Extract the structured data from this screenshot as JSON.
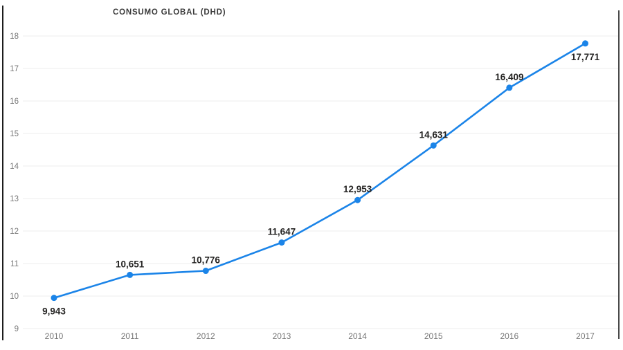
{
  "page": {
    "background": "#ffffff"
  },
  "chart_data": {
    "type": "line",
    "title": "CONSUMO GLOBAL (DHD)",
    "x_labels": [
      "2010",
      "2011",
      "2012",
      "2013",
      "2014",
      "2015",
      "2016",
      "2017"
    ],
    "series": [
      {
        "name": "Consumo global",
        "values": [
          9.943,
          10.651,
          10.776,
          11.647,
          12.953,
          14.631,
          16.409,
          17.771
        ],
        "value_labels": [
          "9,943",
          "10,651",
          "10,776",
          "11,647",
          "12,953",
          "14,631",
          "16,409",
          "17,771"
        ]
      }
    ],
    "ylim": [
      9,
      18
    ],
    "y_ticks": [
      9,
      10,
      11,
      12,
      13,
      14,
      15,
      16,
      17,
      18
    ],
    "y_tick_labels": [
      "9",
      "10",
      "11",
      "12",
      "13",
      "14",
      "15",
      "16",
      "17",
      "18"
    ],
    "xlabel": "",
    "ylabel": "",
    "grid": "horizontal",
    "legend": "none",
    "labels_below_indices": [
      0,
      7
    ],
    "colors": {
      "line": "#1b84e8",
      "marker": "#1b84e8",
      "grid": "#ececec",
      "axis_text": "#777777",
      "data_label_text": "#252423",
      "title_text": "#3b3b3b"
    }
  }
}
